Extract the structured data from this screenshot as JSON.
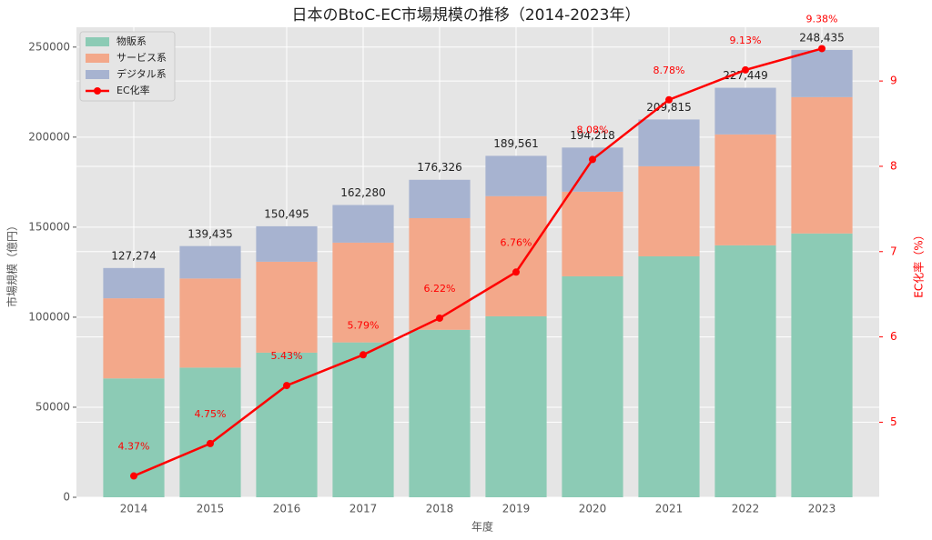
{
  "chart_data": {
    "type": "bar",
    "stacked": true,
    "title": "日本のBtoC-EC市場規模の推移（2014-2023年）",
    "xlabel": "年度",
    "ylabel": "市場規模（億円）",
    "y2label": "EC化率（%）",
    "categories": [
      "2014",
      "2015",
      "2016",
      "2017",
      "2018",
      "2019",
      "2020",
      "2021",
      "2022",
      "2023"
    ],
    "series": [
      {
        "name": "物販系",
        "color": "#8ccbb5",
        "values": [
          66000,
          72000,
          80300,
          86000,
          93000,
          100500,
          122700,
          133800,
          139900,
          146500
        ]
      },
      {
        "name": "サービス系",
        "color": "#f3a88a",
        "values": [
          44500,
          49500,
          50500,
          55400,
          62000,
          66700,
          47000,
          50000,
          61600,
          75700
        ]
      },
      {
        "name": "デジタル系",
        "color": "#a7b3d0",
        "values": [
          16800,
          18000,
          19700,
          20900,
          21300,
          22400,
          24500,
          26000,
          25900,
          26200
        ]
      },
      {
        "name": "EC化率",
        "color": "#ff0000",
        "type": "line",
        "axis": "y2",
        "values": [
          4.37,
          4.75,
          5.43,
          5.79,
          6.22,
          6.76,
          8.08,
          8.78,
          9.13,
          9.38
        ],
        "value_labels": [
          "4.37%",
          "4.75%",
          "5.43%",
          "5.79%",
          "6.22%",
          "6.76%",
          "8.08%",
          "8.78%",
          "9.13%",
          "9.38%"
        ]
      }
    ],
    "totals": [
      127274,
      139435,
      150495,
      162280,
      176326,
      189561,
      194218,
      209815,
      227449,
      248435
    ],
    "total_labels": [
      "127,274",
      "139,435",
      "150,495",
      "162,280",
      "176,326",
      "189,561",
      "194,218",
      "209,815",
      "227,449",
      "248,435"
    ],
    "ylim": [
      0,
      261000
    ],
    "yticks": [
      0,
      50000,
      100000,
      150000,
      200000,
      250000
    ],
    "y2lim": [
      4.12,
      9.63
    ],
    "y2ticks": [
      5,
      6,
      7,
      8,
      9
    ],
    "grid": true,
    "legend": "upper left"
  }
}
